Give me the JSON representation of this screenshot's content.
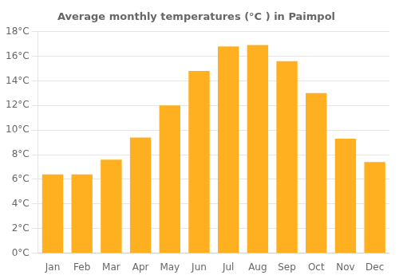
{
  "chart_data": {
    "type": "bar",
    "title": "Average monthly temperatures (°C ) in Paimpol",
    "categories": [
      "Jan",
      "Feb",
      "Mar",
      "Apr",
      "May",
      "Jun",
      "Jul",
      "Aug",
      "Sep",
      "Oct",
      "Nov",
      "Dec"
    ],
    "values": [
      6.4,
      6.4,
      7.6,
      9.4,
      12.0,
      14.8,
      16.8,
      16.9,
      15.6,
      13.0,
      9.3,
      7.4
    ],
    "color": "#FFB020",
    "ylim": [
      0,
      18
    ],
    "yticks": [
      {
        "value": 0,
        "label": "0°C"
      },
      {
        "value": 2,
        "label": "2°C"
      },
      {
        "value": 4,
        "label": "4°C"
      },
      {
        "value": 6,
        "label": "6°C"
      },
      {
        "value": 8,
        "label": "8°C"
      },
      {
        "value": 10,
        "label": "10°C"
      },
      {
        "value": 12,
        "label": "12°C"
      },
      {
        "value": 14,
        "label": "14°C"
      },
      {
        "value": 16,
        "label": "16°C"
      },
      {
        "value": 18,
        "label": "18°C"
      }
    ],
    "grid": true
  }
}
